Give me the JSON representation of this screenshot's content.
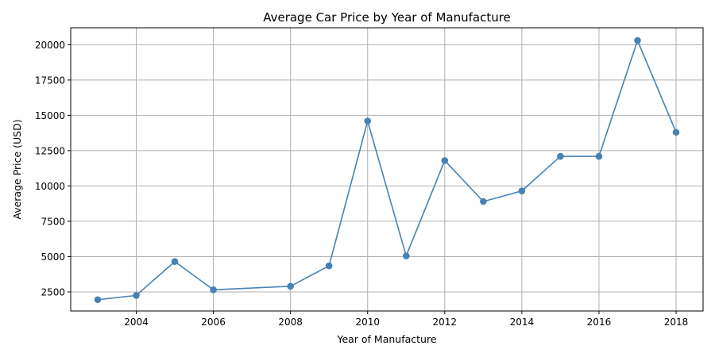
{
  "chart_data": {
    "type": "line",
    "title": "Average Car Price by Year of Manufacture",
    "xlabel": "Year of Manufacture",
    "ylabel": "Average Price (USD)",
    "xlim": [
      2002.3,
      2018.7
    ],
    "ylim": [
      1150,
      21200
    ],
    "xticks": [
      2004,
      2006,
      2008,
      2010,
      2012,
      2014,
      2016,
      2018
    ],
    "yticks": [
      2500,
      5000,
      7500,
      10000,
      12500,
      15000,
      17500,
      20000
    ],
    "grid": true,
    "color": "#4682b4",
    "series": [
      {
        "x": [
          2003,
          2004,
          2005,
          2006,
          2008,
          2009,
          2010,
          2011,
          2012,
          2013,
          2014,
          2015,
          2016,
          2017,
          2018
        ],
        "values": [
          1950,
          2250,
          4650,
          2650,
          2900,
          4350,
          14600,
          5050,
          11800,
          8900,
          9650,
          12100,
          12100,
          20300,
          13800
        ]
      }
    ]
  }
}
